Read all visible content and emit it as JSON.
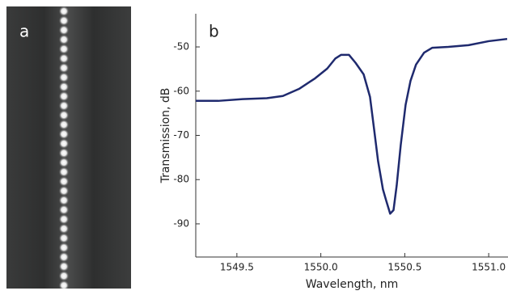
{
  "image": {
    "panel_label": "a"
  },
  "chart_data": {
    "type": "line",
    "panel_label": "b",
    "x_label": "Wavelength, nm",
    "y_label": "Transmission, dB",
    "xlim": [
      1549.255,
      1551.115
    ],
    "ylim": [
      -97.5,
      -42.5
    ],
    "xticks": [
      1549.5,
      {
        "value": 1550,
        "label": "1550.0"
      },
      1550.5,
      {
        "value": 1551,
        "label": "1551.0"
      }
    ],
    "yticks": [
      -50,
      -60,
      -70,
      -80,
      -90
    ],
    "grid": false,
    "x": [
      1549.255,
      1549.389,
      1549.534,
      1549.678,
      1549.774,
      1549.87,
      1549.966,
      1550.038,
      1550.087,
      1550.12,
      1550.168,
      1550.207,
      1550.255,
      1550.293,
      1550.317,
      1550.341,
      1550.37,
      1550.389,
      1550.413,
      1550.433,
      1550.452,
      1550.476,
      1550.505,
      1550.534,
      1550.567,
      1550.615,
      1550.663,
      1550.76,
      1550.88,
      1551.0,
      1551.11
    ],
    "series": [
      {
        "color": "#1f2a6e",
        "values": [
          -62.2,
          -62.2,
          -61.8,
          -61.6,
          -61.1,
          -59.5,
          -57.1,
          -54.9,
          -52.6,
          -51.8,
          -51.8,
          -53.6,
          -56.2,
          -61.3,
          -68.5,
          -75.8,
          -82.2,
          -84.7,
          -87.7,
          -86.9,
          -81.3,
          -72.2,
          -63.1,
          -57.7,
          -54.0,
          -51.3,
          -50.2,
          -50.0,
          -49.6,
          -48.7,
          -48.2
        ]
      }
    ]
  }
}
